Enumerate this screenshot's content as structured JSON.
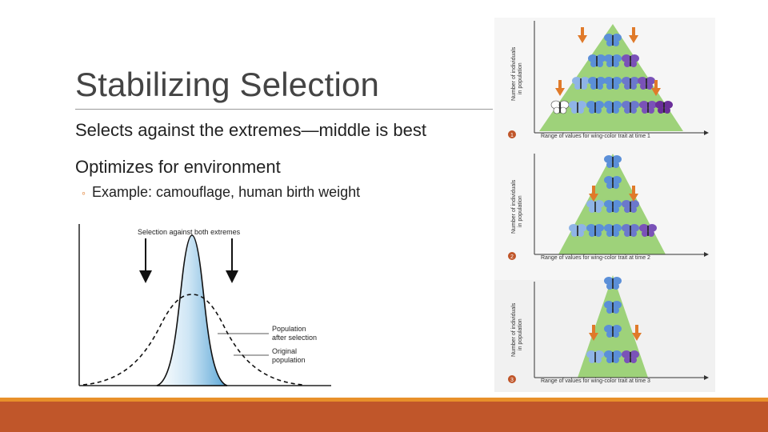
{
  "slide": {
    "title": "Stabilizing Selection",
    "bullets": [
      "Selects against the extremes—middle is best",
      "Optimizes for environment"
    ],
    "sub_bullets": [
      "Example: camouflage, human birth weight"
    ]
  },
  "left_figure": {
    "header": "Selection against both extremes",
    "label_after_line1": "Population",
    "label_after_line2": "after selection",
    "label_orig_line1": "Original",
    "label_orig_line2": "population"
  },
  "right_figure": {
    "y_axis_line1": "Number of individuals",
    "y_axis_line2": "in population",
    "panels": [
      {
        "step": "1",
        "x_label": "Range of values for wing-color trait at time 1"
      },
      {
        "step": "2",
        "x_label": "Range of values for wing-color trait at time 2"
      },
      {
        "step": "3",
        "x_label": "Range of values for wing-color trait at time 3"
      }
    ]
  },
  "colors": {
    "accent_orange": "#e8902a",
    "footer": "#c0562a",
    "hill_green": "#9ed27a",
    "arrow_orange": "#e07a2a"
  }
}
